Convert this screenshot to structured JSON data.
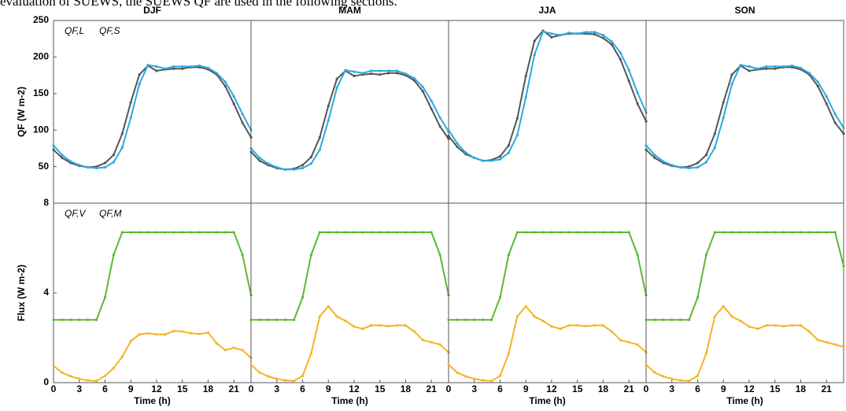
{
  "caption_fragment": "evaluation of SUEWS, the SUEWS QF are used in the following sections.",
  "chart_data": [
    {
      "type": "line",
      "title": "DJF",
      "ylabel": "QF (W m-2)",
      "legend": "upper left",
      "x": [
        0,
        1,
        2,
        3,
        4,
        5,
        6,
        7,
        8,
        9,
        10,
        11,
        12,
        13,
        14,
        15,
        16,
        17,
        18,
        19,
        20,
        21,
        22,
        23
      ],
      "xlim": [
        0,
        23
      ],
      "ylim": [
        0,
        250
      ],
      "yticks": [
        50,
        100,
        150,
        200,
        250
      ],
      "series": [
        {
          "name": "QF,L",
          "color": "#555555",
          "values": [
            73,
            62,
            55,
            51,
            49,
            50,
            55,
            66,
            95,
            138,
            176,
            188,
            181,
            183,
            184,
            184,
            186,
            186,
            183,
            176,
            160,
            136,
            110,
            90
          ]
        },
        {
          "name": "QF,S",
          "color": "#2aa9e0",
          "values": [
            79,
            66,
            57,
            52,
            49,
            48,
            49,
            56,
            76,
            117,
            163,
            189,
            187,
            184,
            187,
            187,
            187,
            188,
            185,
            178,
            166,
            146,
            122,
            100
          ]
        }
      ]
    },
    {
      "type": "line",
      "title": "MAM",
      "x": [
        0,
        1,
        2,
        3,
        4,
        5,
        6,
        7,
        8,
        9,
        10,
        11,
        12,
        13,
        14,
        15,
        16,
        17,
        18,
        19,
        20,
        21,
        22,
        23
      ],
      "xlim": [
        0,
        23
      ],
      "ylim": [
        0,
        250
      ],
      "series": [
        {
          "color": "#555555",
          "values": [
            70,
            58,
            52,
            48,
            46,
            47,
            52,
            63,
            90,
            133,
            170,
            181,
            174,
            176,
            177,
            176,
            178,
            178,
            175,
            168,
            153,
            129,
            105,
            88
          ]
        },
        {
          "color": "#2aa9e0",
          "values": [
            75,
            62,
            54,
            49,
            46,
            46,
            48,
            54,
            73,
            113,
            158,
            182,
            180,
            178,
            181,
            181,
            181,
            181,
            177,
            171,
            159,
            140,
            117,
            98
          ]
        }
      ]
    },
    {
      "type": "line",
      "title": "JJA",
      "x": [
        0,
        1,
        2,
        3,
        4,
        5,
        6,
        7,
        8,
        9,
        10,
        11,
        12,
        13,
        14,
        15,
        16,
        17,
        18,
        19,
        20,
        21,
        22,
        23
      ],
      "xlim": [
        0,
        23
      ],
      "ylim": [
        0,
        250
      ],
      "series": [
        {
          "color": "#555555",
          "values": [
            92,
            77,
            67,
            62,
            58,
            59,
            64,
            79,
            116,
            174,
            222,
            236,
            227,
            230,
            232,
            232,
            232,
            231,
            226,
            217,
            197,
            167,
            136,
            112
          ]
        },
        {
          "color": "#2aa9e0",
          "values": [
            100,
            82,
            69,
            62,
            58,
            58,
            60,
            69,
            93,
            145,
            203,
            235,
            232,
            230,
            233,
            232,
            234,
            234,
            230,
            221,
            206,
            182,
            151,
            124
          ]
        }
      ]
    },
    {
      "type": "line",
      "title": "SON",
      "x": [
        0,
        1,
        2,
        3,
        4,
        5,
        6,
        7,
        8,
        9,
        10,
        11,
        12,
        13,
        14,
        15,
        16,
        17,
        18,
        19,
        20,
        21,
        22,
        23
      ],
      "xlim": [
        0,
        23
      ],
      "ylim": [
        0,
        250
      ],
      "series": [
        {
          "color": "#555555",
          "values": [
            73,
            62,
            55,
            51,
            49,
            50,
            55,
            66,
            95,
            138,
            176,
            188,
            181,
            183,
            184,
            184,
            186,
            186,
            183,
            176,
            160,
            136,
            110,
            95
          ]
        },
        {
          "color": "#2aa9e0",
          "values": [
            79,
            66,
            57,
            52,
            49,
            48,
            49,
            56,
            76,
            117,
            163,
            189,
            187,
            184,
            187,
            187,
            187,
            188,
            185,
            178,
            166,
            146,
            122,
            103
          ]
        }
      ]
    },
    {
      "type": "line",
      "ylabel": "Flux (W m-2)",
      "xlabel": "Time (h)",
      "legend": "upper left",
      "x": [
        0,
        1,
        2,
        3,
        4,
        5,
        6,
        7,
        8,
        9,
        10,
        11,
        12,
        13,
        14,
        15,
        16,
        17,
        18,
        19,
        20,
        21,
        22,
        23
      ],
      "xlim": [
        0,
        23
      ],
      "xticks": [
        0,
        3,
        6,
        9,
        12,
        15,
        18,
        21
      ],
      "ylim": [
        0,
        8
      ],
      "yticks": [
        0,
        4,
        8
      ],
      "series": [
        {
          "name": "QF,V",
          "color": "#f5b324",
          "values": [
            0.75,
            0.45,
            0.28,
            0.17,
            0.1,
            0.08,
            0.3,
            0.65,
            1.15,
            1.85,
            2.15,
            2.2,
            2.15,
            2.15,
            2.3,
            2.28,
            2.2,
            2.17,
            2.23,
            1.75,
            1.45,
            1.55,
            1.45,
            1.1
          ]
        },
        {
          "name": "QF,M",
          "color": "#5db832",
          "values": [
            2.8,
            2.8,
            2.8,
            2.8,
            2.8,
            2.8,
            3.8,
            5.7,
            6.7,
            6.7,
            6.7,
            6.7,
            6.7,
            6.7,
            6.7,
            6.7,
            6.7,
            6.7,
            6.7,
            6.7,
            6.7,
            6.7,
            5.7,
            3.9
          ]
        }
      ]
    },
    {
      "type": "line",
      "xlabel": "Time (h)",
      "x": [
        0,
        1,
        2,
        3,
        4,
        5,
        6,
        7,
        8,
        9,
        10,
        11,
        12,
        13,
        14,
        15,
        16,
        17,
        18,
        19,
        20,
        21,
        22,
        23
      ],
      "xlim": [
        0,
        23
      ],
      "xticks": [
        0,
        3,
        6,
        9,
        12,
        15,
        18,
        21
      ],
      "ylim": [
        0,
        8
      ],
      "series": [
        {
          "color": "#f5b324",
          "values": [
            0.8,
            0.45,
            0.28,
            0.17,
            0.1,
            0.08,
            0.3,
            1.3,
            2.95,
            3.4,
            2.95,
            2.75,
            2.5,
            2.4,
            2.55,
            2.55,
            2.52,
            2.55,
            2.55,
            2.28,
            1.9,
            1.8,
            1.7,
            1.35
          ]
        },
        {
          "color": "#5db832",
          "values": [
            2.8,
            2.8,
            2.8,
            2.8,
            2.8,
            2.8,
            3.8,
            5.7,
            6.7,
            6.7,
            6.7,
            6.7,
            6.7,
            6.7,
            6.7,
            6.7,
            6.7,
            6.7,
            6.7,
            6.7,
            6.7,
            6.7,
            5.7,
            3.9
          ]
        }
      ]
    },
    {
      "type": "line",
      "xlabel": "Time (h)",
      "x": [
        0,
        1,
        2,
        3,
        4,
        5,
        6,
        7,
        8,
        9,
        10,
        11,
        12,
        13,
        14,
        15,
        16,
        17,
        18,
        19,
        20,
        21,
        22,
        23
      ],
      "xlim": [
        0,
        23
      ],
      "xticks": [
        0,
        3,
        6,
        9,
        12,
        15,
        18,
        21
      ],
      "ylim": [
        0,
        8
      ],
      "series": [
        {
          "color": "#f5b324",
          "values": [
            0.8,
            0.45,
            0.28,
            0.17,
            0.1,
            0.08,
            0.3,
            1.3,
            2.95,
            3.4,
            2.95,
            2.75,
            2.5,
            2.4,
            2.55,
            2.55,
            2.52,
            2.55,
            2.55,
            2.28,
            1.9,
            1.8,
            1.7,
            1.35
          ]
        },
        {
          "color": "#5db832",
          "values": [
            2.8,
            2.8,
            2.8,
            2.8,
            2.8,
            2.8,
            3.8,
            5.7,
            6.7,
            6.7,
            6.7,
            6.7,
            6.7,
            6.7,
            6.7,
            6.7,
            6.7,
            6.7,
            6.7,
            6.7,
            6.7,
            6.7,
            5.7,
            3.9
          ]
        }
      ]
    },
    {
      "type": "line",
      "xlabel": "Time (h)",
      "x": [
        0,
        1,
        2,
        3,
        4,
        5,
        6,
        7,
        8,
        9,
        10,
        11,
        12,
        13,
        14,
        15,
        16,
        17,
        18,
        19,
        20,
        21,
        22,
        23
      ],
      "xlim": [
        0,
        23
      ],
      "xticks": [
        0,
        3,
        6,
        9,
        12,
        15,
        18,
        21
      ],
      "ylim": [
        0,
        8
      ],
      "series": [
        {
          "color": "#f5b324",
          "values": [
            0.8,
            0.45,
            0.28,
            0.17,
            0.1,
            0.08,
            0.3,
            1.3,
            2.95,
            3.4,
            2.95,
            2.75,
            2.5,
            2.4,
            2.55,
            2.55,
            2.52,
            2.55,
            2.55,
            2.28,
            1.9,
            1.8,
            1.7,
            1.6
          ]
        },
        {
          "color": "#5db832",
          "values": [
            2.8,
            2.8,
            2.8,
            2.8,
            2.8,
            2.8,
            3.8,
            5.7,
            6.7,
            6.7,
            6.7,
            6.7,
            6.7,
            6.7,
            6.7,
            6.7,
            6.7,
            6.7,
            6.7,
            6.7,
            6.7,
            6.7,
            6.7,
            5.2
          ]
        }
      ]
    }
  ]
}
